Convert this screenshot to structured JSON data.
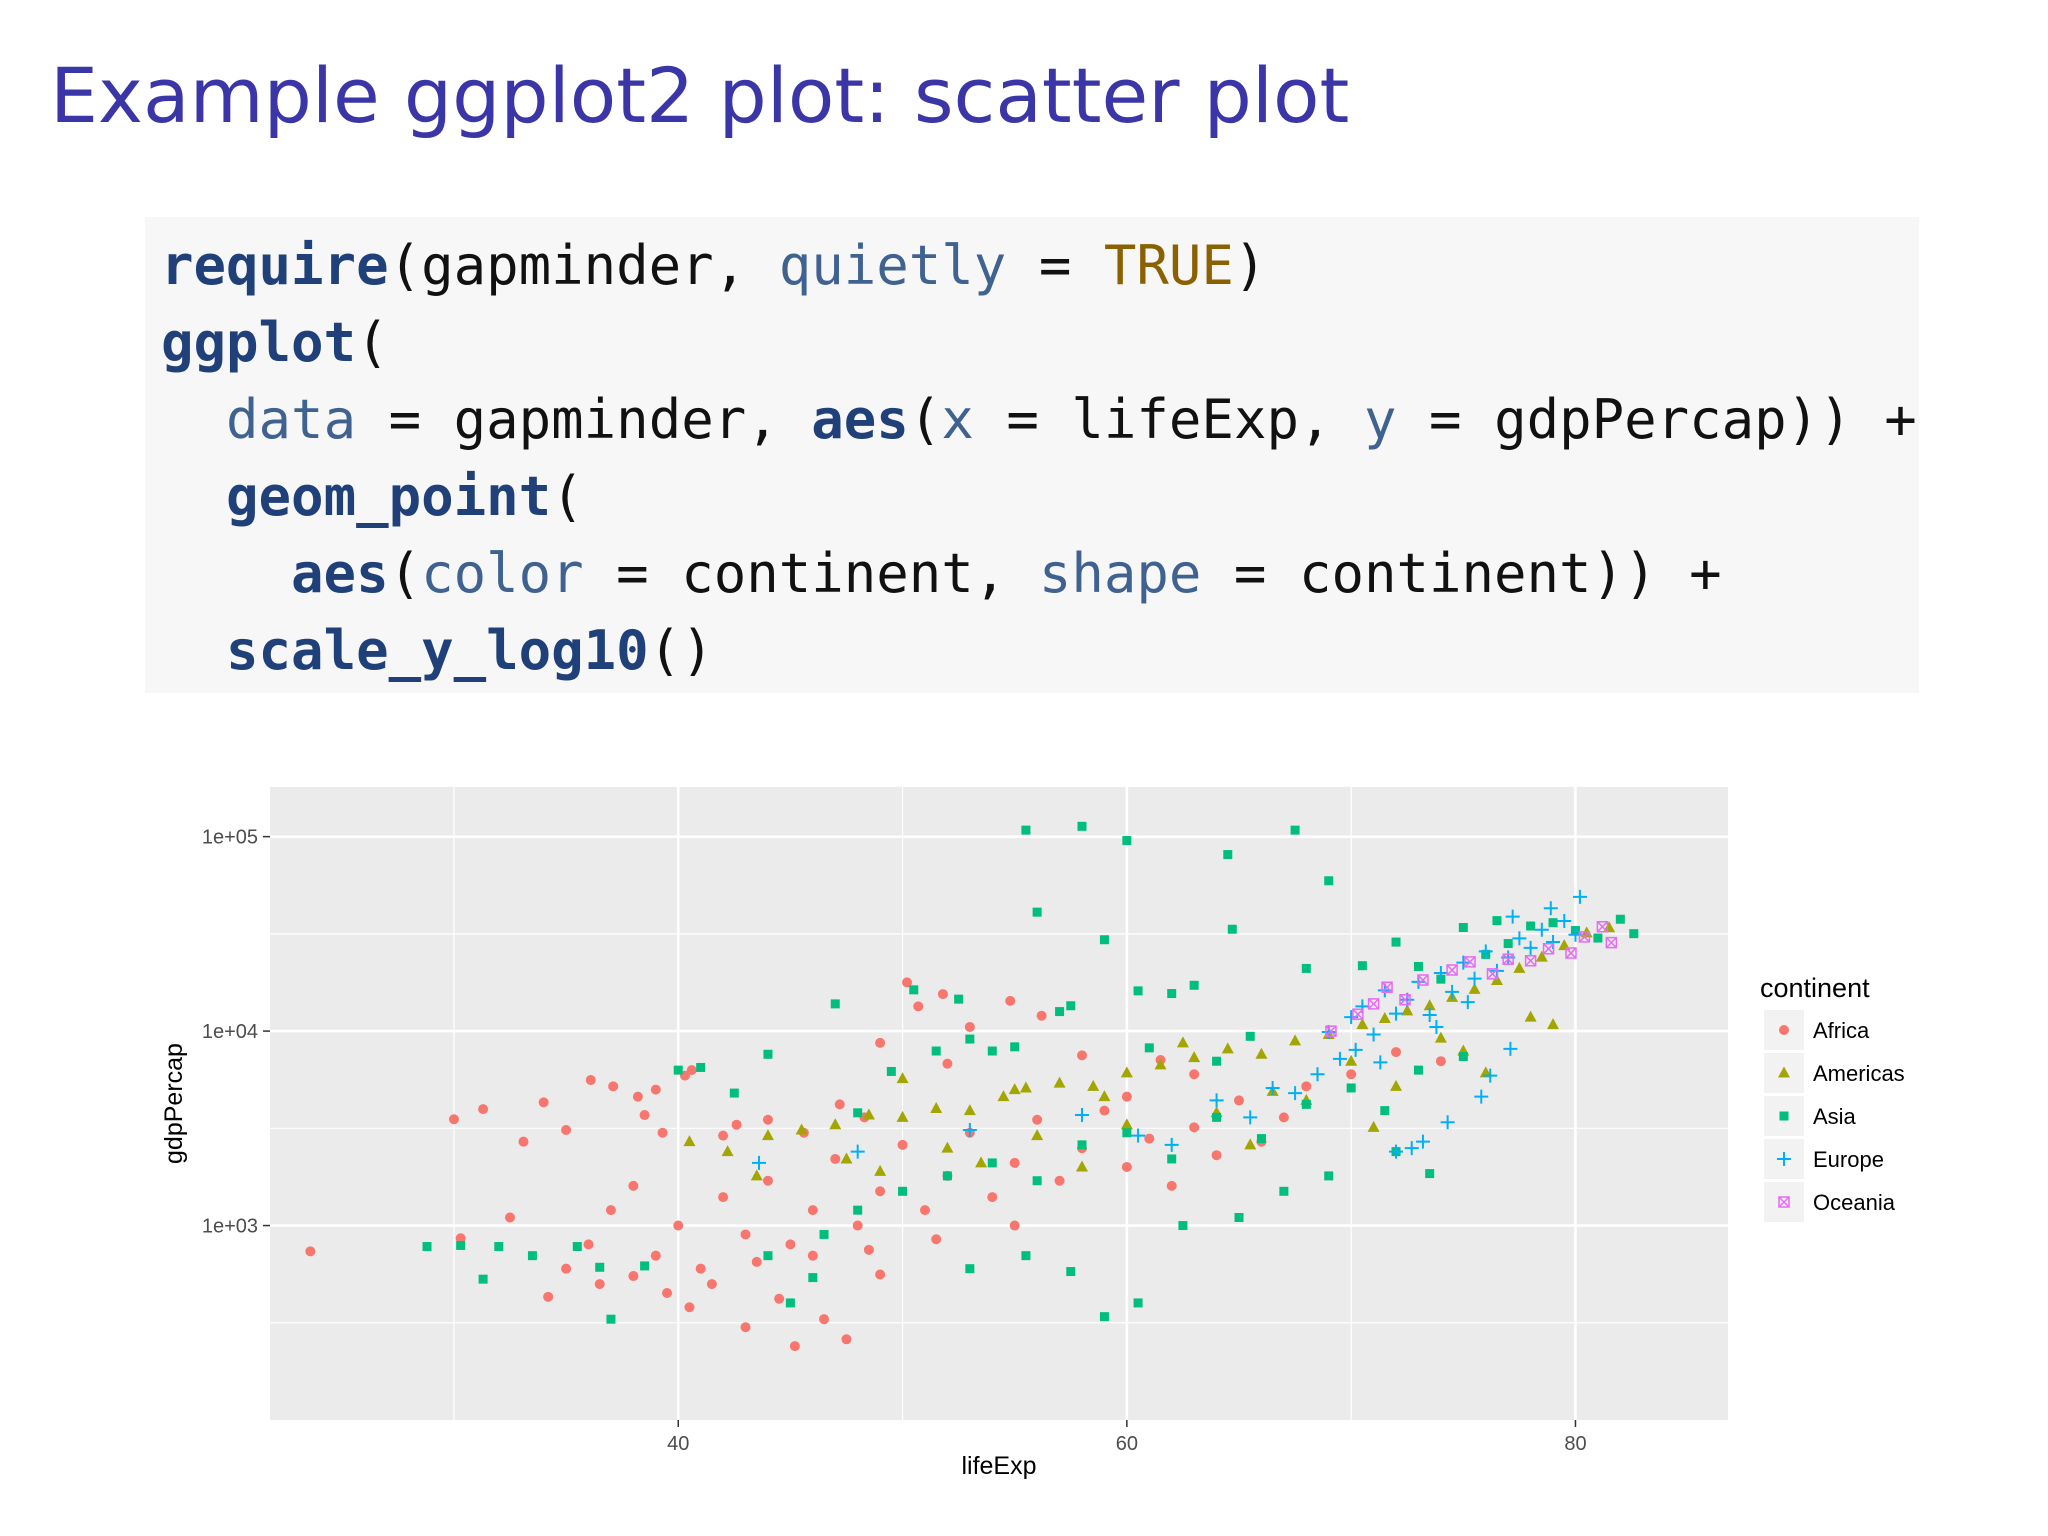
{
  "slide": {
    "title": "Example ggplot2 plot: scatter plot"
  },
  "code": {
    "line1": {
      "fn": "require",
      "open": "(",
      "arg1": "gapminder",
      "sep1": ", ",
      "kw": "quietly",
      "eq": " = ",
      "val": "TRUE",
      "close": ")"
    },
    "line2": {
      "fn": "ggplot",
      "open": "("
    },
    "line3": {
      "kw1": "data",
      "eq1": " = ",
      "val1": "gapminder",
      "sep1": ", ",
      "fn": "aes",
      "open": "(",
      "kw2": "x",
      "eq2": " = ",
      "val2": "lifeExp",
      "sep2": ", ",
      "kw3": "y",
      "eq3": " = ",
      "val3": "gdpPercap",
      "close": ")) +"
    },
    "line4": {
      "fn": "geom_point",
      "open": "("
    },
    "line5": {
      "fn": "aes",
      "open": "(",
      "kw1": "color",
      "eq1": " = ",
      "val1": "continent",
      "sep1": ", ",
      "kw2": "shape",
      "eq2": " = ",
      "val2": "continent",
      "close": ")) +"
    },
    "line6": {
      "fn": "scale_y_log10",
      "close": "()"
    }
  },
  "chart_data": {
    "type": "scatter",
    "xlabel": "lifeExp",
    "ylabel": "gdpPercap",
    "xlim": [
      21.8,
      86.8
    ],
    "ylim": [
      100,
      180000
    ],
    "y_scale": "log10",
    "x_ticks": [
      40,
      60,
      80
    ],
    "x_tick_labels": [
      "40",
      "60",
      "80"
    ],
    "y_ticks": [
      1000,
      10000,
      100000
    ],
    "y_tick_labels": [
      "1e+03",
      "1e+04",
      "1e+05"
    ],
    "grid": true,
    "legend_title": "continent",
    "legend_position": "right",
    "series": [
      {
        "name": "Africa",
        "color": "#f8766d",
        "shape": "circle",
        "points": [
          [
            23.6,
            737
          ],
          [
            30.0,
            3520
          ],
          [
            30.3,
            860
          ],
          [
            31.3,
            3970
          ],
          [
            32.5,
            1100
          ],
          [
            33.1,
            2700
          ],
          [
            34.0,
            4300
          ],
          [
            35.0,
            3100
          ],
          [
            36.1,
            5600
          ],
          [
            37.1,
            5200
          ],
          [
            38.2,
            4600
          ],
          [
            38.5,
            3700
          ],
          [
            39.0,
            5000
          ],
          [
            39.3,
            3000
          ],
          [
            40.3,
            5900
          ],
          [
            40.6,
            6300
          ],
          [
            42.0,
            2900
          ],
          [
            42.6,
            3300
          ],
          [
            44.0,
            3500
          ],
          [
            45.6,
            3000
          ],
          [
            47.2,
            4200
          ],
          [
            48.3,
            3600
          ],
          [
            49.0,
            8700
          ],
          [
            50.2,
            17800
          ],
          [
            50.7,
            13400
          ],
          [
            51.8,
            15500
          ],
          [
            52.0,
            6800
          ],
          [
            53.0,
            10500
          ],
          [
            54.8,
            14300
          ],
          [
            56.2,
            12000
          ],
          [
            58.0,
            7500
          ],
          [
            60.0,
            4600
          ],
          [
            61.5,
            7100
          ],
          [
            63.0,
            6000
          ],
          [
            34.2,
            430
          ],
          [
            35.0,
            600
          ],
          [
            36.0,
            800
          ],
          [
            37.0,
            1200
          ],
          [
            38.0,
            1600
          ],
          [
            39.0,
            700
          ],
          [
            40.0,
            1000
          ],
          [
            41.0,
            600
          ],
          [
            42.0,
            1400
          ],
          [
            43.0,
            900
          ],
          [
            44.0,
            1700
          ],
          [
            45.0,
            800
          ],
          [
            46.0,
            1200
          ],
          [
            47.0,
            2200
          ],
          [
            48.0,
            1000
          ],
          [
            49.0,
            1500
          ],
          [
            50.0,
            2600
          ],
          [
            51.0,
            1200
          ],
          [
            52.0,
            1800
          ],
          [
            53.0,
            3000
          ],
          [
            54.0,
            1400
          ],
          [
            55.0,
            2100
          ],
          [
            56.0,
            3500
          ],
          [
            57.0,
            1700
          ],
          [
            58.0,
            2500
          ],
          [
            59.0,
            3900
          ],
          [
            60.0,
            2000
          ],
          [
            61.0,
            2800
          ],
          [
            62.0,
            1600
          ],
          [
            63.0,
            3200
          ],
          [
            64.0,
            2300
          ],
          [
            65.0,
            4400
          ],
          [
            66.0,
            2700
          ],
          [
            67.0,
            3600
          ],
          [
            68.0,
            5200
          ],
          [
            70.0,
            6000
          ],
          [
            72.0,
            7800
          ],
          [
            74.0,
            7000
          ],
          [
            40.5,
            380
          ],
          [
            43.0,
            300
          ],
          [
            44.5,
            420
          ],
          [
            45.2,
            240
          ],
          [
            46.5,
            330
          ],
          [
            47.5,
            260
          ],
          [
            49.0,
            560
          ],
          [
            41.5,
            500
          ],
          [
            36.5,
            500
          ],
          [
            38.0,
            550
          ],
          [
            39.5,
            450
          ],
          [
            43.5,
            650
          ],
          [
            46.0,
            700
          ],
          [
            48.5,
            750
          ],
          [
            51.5,
            850
          ],
          [
            55.0,
            1000
          ]
        ]
      },
      {
        "name": "Americas",
        "color": "#a3a500",
        "shape": "triangle",
        "points": [
          [
            40.5,
            2700
          ],
          [
            42.2,
            2400
          ],
          [
            44.0,
            2900
          ],
          [
            45.5,
            3100
          ],
          [
            47.0,
            3300
          ],
          [
            48.5,
            3700
          ],
          [
            50.0,
            3600
          ],
          [
            51.5,
            4000
          ],
          [
            53.0,
            3900
          ],
          [
            54.5,
            4600
          ],
          [
            55.5,
            5100
          ],
          [
            57.0,
            5400
          ],
          [
            58.5,
            5200
          ],
          [
            60.0,
            6100
          ],
          [
            61.5,
            6700
          ],
          [
            63.0,
            7300
          ],
          [
            64.5,
            8100
          ],
          [
            66.0,
            7600
          ],
          [
            67.5,
            8900
          ],
          [
            69.0,
            9600
          ],
          [
            70.5,
            10800
          ],
          [
            71.5,
            11600
          ],
          [
            72.5,
            12700
          ],
          [
            73.5,
            13500
          ],
          [
            74.5,
            14900
          ],
          [
            75.5,
            16400
          ],
          [
            76.5,
            18200
          ],
          [
            77.5,
            21000
          ],
          [
            78.5,
            24000
          ],
          [
            79.5,
            27500
          ],
          [
            80.5,
            32000
          ],
          [
            81.5,
            34000
          ],
          [
            47.5,
            2200
          ],
          [
            52.0,
            2500
          ],
          [
            56.0,
            2900
          ],
          [
            60.0,
            3300
          ],
          [
            64.0,
            3800
          ],
          [
            68.0,
            4400
          ],
          [
            72.0,
            5200
          ],
          [
            76.0,
            6100
          ],
          [
            50.0,
            5700
          ],
          [
            55.0,
            5000
          ],
          [
            59.0,
            4600
          ],
          [
            62.5,
            8700
          ],
          [
            66.5,
            4900
          ],
          [
            70.0,
            7000
          ],
          [
            74.0,
            9200
          ],
          [
            78.0,
            11800
          ],
          [
            43.5,
            1800
          ],
          [
            49.0,
            1900
          ],
          [
            53.5,
            2100
          ],
          [
            58.0,
            2000
          ],
          [
            65.5,
            2600
          ],
          [
            71.0,
            3200
          ],
          [
            75.0,
            7900
          ],
          [
            79.0,
            10800
          ]
        ]
      },
      {
        "name": "Asia",
        "color": "#00bf7d",
        "shape": "square",
        "points": [
          [
            28.8,
            780
          ],
          [
            30.3,
            790
          ],
          [
            31.3,
            530
          ],
          [
            32.0,
            780
          ],
          [
            33.5,
            700
          ],
          [
            35.5,
            780
          ],
          [
            36.5,
            610
          ],
          [
            37.0,
            330
          ],
          [
            38.5,
            620
          ],
          [
            40.0,
            6300
          ],
          [
            41.0,
            6500
          ],
          [
            42.5,
            4800
          ],
          [
            44.0,
            7600
          ],
          [
            45.0,
            400
          ],
          [
            46.0,
            540
          ],
          [
            47.0,
            13800
          ],
          [
            48.0,
            3800
          ],
          [
            49.5,
            6200
          ],
          [
            50.5,
            16300
          ],
          [
            51.5,
            7900
          ],
          [
            52.5,
            14600
          ],
          [
            53.0,
            9100
          ],
          [
            54.0,
            7900
          ],
          [
            55.0,
            8300
          ],
          [
            55.5,
            108000
          ],
          [
            56.0,
            40900
          ],
          [
            57.0,
            12600
          ],
          [
            57.5,
            13500
          ],
          [
            58.0,
            113000
          ],
          [
            59.0,
            29500
          ],
          [
            60.0,
            95500
          ],
          [
            60.5,
            16100
          ],
          [
            61.0,
            8200
          ],
          [
            62.0,
            15600
          ],
          [
            63.0,
            17200
          ],
          [
            64.0,
            7000
          ],
          [
            64.5,
            80900
          ],
          [
            64.7,
            33400
          ],
          [
            65.5,
            9400
          ],
          [
            67.5,
            108000
          ],
          [
            68.0,
            21000
          ],
          [
            69.0,
            59300
          ],
          [
            70.5,
            21700
          ],
          [
            72.0,
            28700
          ],
          [
            73.0,
            21500
          ],
          [
            74.0,
            18500
          ],
          [
            75.0,
            34100
          ],
          [
            76.0,
            24800
          ],
          [
            77.0,
            28200
          ],
          [
            78.0,
            34700
          ],
          [
            79.0,
            36100
          ],
          [
            80.0,
            32900
          ],
          [
            81.0,
            30100
          ],
          [
            82.0,
            37600
          ],
          [
            82.6,
            31700
          ],
          [
            76.5,
            37000
          ],
          [
            44.0,
            700
          ],
          [
            46.5,
            900
          ],
          [
            48.0,
            1200
          ],
          [
            50.0,
            1500
          ],
          [
            52.0,
            1800
          ],
          [
            54.0,
            2100
          ],
          [
            56.0,
            1700
          ],
          [
            58.0,
            2600
          ],
          [
            60.0,
            3000
          ],
          [
            62.0,
            2200
          ],
          [
            64.0,
            3600
          ],
          [
            66.0,
            2800
          ],
          [
            68.0,
            4200
          ],
          [
            70.0,
            5100
          ],
          [
            71.5,
            3900
          ],
          [
            73.0,
            6300
          ],
          [
            75.0,
            7400
          ],
          [
            53.0,
            600
          ],
          [
            55.5,
            700
          ],
          [
            57.5,
            580
          ],
          [
            59.0,
            340
          ],
          [
            60.5,
            400
          ],
          [
            62.5,
            1000
          ],
          [
            65.0,
            1100
          ],
          [
            67.0,
            1500
          ],
          [
            69.0,
            1800
          ],
          [
            72.0,
            2400
          ],
          [
            73.5,
            1850
          ]
        ]
      },
      {
        "name": "Europe",
        "color": "#00b0f6",
        "shape": "plus",
        "points": [
          [
            43.6,
            2100
          ],
          [
            48.0,
            2400
          ],
          [
            53.0,
            3100
          ],
          [
            58.0,
            3700
          ],
          [
            60.5,
            2900
          ],
          [
            62.0,
            2600
          ],
          [
            64.0,
            4400
          ],
          [
            65.5,
            3600
          ],
          [
            66.5,
            5100
          ],
          [
            67.5,
            4800
          ],
          [
            68.5,
            6000
          ],
          [
            69.5,
            7200
          ],
          [
            70.0,
            11800
          ],
          [
            70.5,
            13400
          ],
          [
            71.0,
            9600
          ],
          [
            71.5,
            16200
          ],
          [
            72.0,
            12300
          ],
          [
            72.5,
            14500
          ],
          [
            73.0,
            17900
          ],
          [
            73.5,
            12100
          ],
          [
            74.0,
            19900
          ],
          [
            74.5,
            15900
          ],
          [
            75.0,
            22500
          ],
          [
            75.5,
            18600
          ],
          [
            76.0,
            25700
          ],
          [
            76.5,
            20400
          ],
          [
            77.0,
            23900
          ],
          [
            77.5,
            30000
          ],
          [
            78.0,
            26800
          ],
          [
            78.5,
            33200
          ],
          [
            79.0,
            28700
          ],
          [
            79.5,
            36800
          ],
          [
            80.0,
            31300
          ],
          [
            80.2,
            49000
          ],
          [
            78.9,
            42800
          ],
          [
            77.2,
            38800
          ],
          [
            72.0,
            2400
          ],
          [
            72.7,
            2500
          ],
          [
            73.2,
            2700
          ],
          [
            74.3,
            3400
          ],
          [
            75.8,
            4600
          ],
          [
            76.2,
            5900
          ],
          [
            77.1,
            8100
          ],
          [
            70.2,
            8000
          ],
          [
            69.0,
            9900
          ],
          [
            71.3,
            6900
          ],
          [
            73.8,
            10500
          ],
          [
            75.2,
            14100
          ]
        ]
      },
      {
        "name": "Oceania",
        "color": "#e76bf3",
        "shape": "boxcross",
        "points": [
          [
            69.1,
            10000
          ],
          [
            70.3,
            12200
          ],
          [
            71.0,
            13800
          ],
          [
            71.6,
            16800
          ],
          [
            72.4,
            14500
          ],
          [
            73.2,
            18300
          ],
          [
            74.5,
            20600
          ],
          [
            75.3,
            22700
          ],
          [
            76.3,
            19700
          ],
          [
            77.0,
            23400
          ],
          [
            78.0,
            23000
          ],
          [
            78.8,
            26500
          ],
          [
            79.8,
            25200
          ],
          [
            80.4,
            30500
          ],
          [
            81.2,
            34400
          ],
          [
            81.6,
            28500
          ]
        ]
      }
    ]
  }
}
